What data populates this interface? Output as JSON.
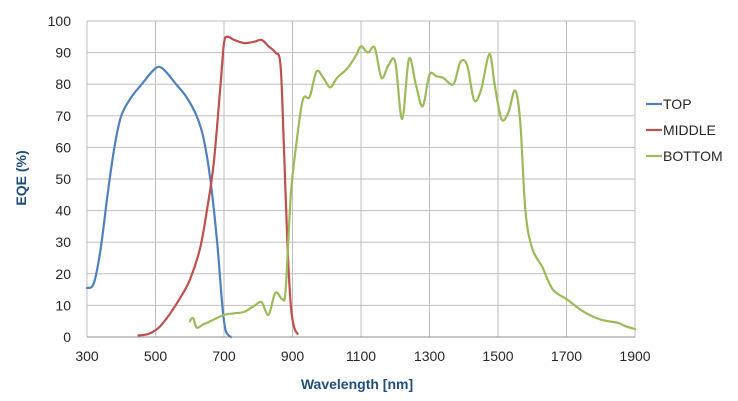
{
  "chart_data": {
    "type": "line",
    "title": "",
    "xlabel": "Wavelength [nm]",
    "ylabel": "EQE (%)",
    "xlim": [
      300,
      1900
    ],
    "ylim": [
      0,
      100
    ],
    "xticks": [
      300,
      500,
      700,
      900,
      1100,
      1300,
      1500,
      1700,
      1900
    ],
    "yticks": [
      0,
      10,
      20,
      30,
      40,
      50,
      60,
      70,
      80,
      90,
      100
    ],
    "grid": true,
    "legend_position": "right",
    "series": [
      {
        "name": "TOP",
        "color": "#4f81bd",
        "points": [
          [
            300,
            15.5
          ],
          [
            320,
            17
          ],
          [
            340,
            28
          ],
          [
            360,
            45
          ],
          [
            380,
            60
          ],
          [
            400,
            70
          ],
          [
            430,
            76
          ],
          [
            460,
            80
          ],
          [
            490,
            84
          ],
          [
            510,
            85.5
          ],
          [
            530,
            84
          ],
          [
            560,
            80
          ],
          [
            590,
            76
          ],
          [
            620,
            70
          ],
          [
            640,
            63
          ],
          [
            660,
            50
          ],
          [
            680,
            30
          ],
          [
            695,
            10
          ],
          [
            705,
            2
          ],
          [
            720,
            0
          ]
        ]
      },
      {
        "name": "MIDDLE",
        "color": "#c0504d",
        "points": [
          [
            450,
            0.5
          ],
          [
            480,
            1
          ],
          [
            510,
            3
          ],
          [
            540,
            7
          ],
          [
            570,
            12
          ],
          [
            600,
            18
          ],
          [
            630,
            28
          ],
          [
            650,
            40
          ],
          [
            670,
            55
          ],
          [
            690,
            80
          ],
          [
            700,
            93
          ],
          [
            710,
            95
          ],
          [
            730,
            94
          ],
          [
            760,
            93
          ],
          [
            790,
            93.5
          ],
          [
            810,
            94
          ],
          [
            830,
            92
          ],
          [
            850,
            90
          ],
          [
            865,
            86
          ],
          [
            875,
            60
          ],
          [
            885,
            30
          ],
          [
            895,
            10
          ],
          [
            905,
            3
          ],
          [
            915,
            1
          ]
        ]
      },
      {
        "name": "BOTTOM",
        "color": "#9bbb59",
        "points": [
          [
            600,
            5
          ],
          [
            610,
            6
          ],
          [
            620,
            3
          ],
          [
            640,
            4
          ],
          [
            670,
            5.5
          ],
          [
            700,
            7
          ],
          [
            730,
            7.5
          ],
          [
            760,
            8
          ],
          [
            790,
            10
          ],
          [
            810,
            11
          ],
          [
            830,
            7
          ],
          [
            850,
            14
          ],
          [
            870,
            12
          ],
          [
            880,
            15
          ],
          [
            895,
            45
          ],
          [
            910,
            60
          ],
          [
            930,
            75
          ],
          [
            950,
            76
          ],
          [
            970,
            84
          ],
          [
            990,
            82
          ],
          [
            1010,
            79
          ],
          [
            1030,
            82
          ],
          [
            1060,
            85
          ],
          [
            1085,
            89
          ],
          [
            1100,
            92
          ],
          [
            1120,
            90
          ],
          [
            1140,
            91.5
          ],
          [
            1160,
            82
          ],
          [
            1180,
            86
          ],
          [
            1200,
            87
          ],
          [
            1220,
            69
          ],
          [
            1240,
            88
          ],
          [
            1260,
            80
          ],
          [
            1280,
            73
          ],
          [
            1300,
            83
          ],
          [
            1320,
            82.5
          ],
          [
            1340,
            82
          ],
          [
            1370,
            80
          ],
          [
            1390,
            87
          ],
          [
            1410,
            86
          ],
          [
            1430,
            75
          ],
          [
            1450,
            78
          ],
          [
            1475,
            89.5
          ],
          [
            1490,
            80
          ],
          [
            1510,
            69
          ],
          [
            1530,
            71
          ],
          [
            1550,
            78
          ],
          [
            1565,
            68
          ],
          [
            1580,
            40
          ],
          [
            1600,
            28
          ],
          [
            1630,
            22
          ],
          [
            1660,
            15
          ],
          [
            1700,
            12
          ],
          [
            1750,
            8
          ],
          [
            1800,
            5.5
          ],
          [
            1850,
            4.5
          ],
          [
            1870,
            3.5
          ],
          [
            1900,
            2.5
          ]
        ]
      }
    ]
  }
}
